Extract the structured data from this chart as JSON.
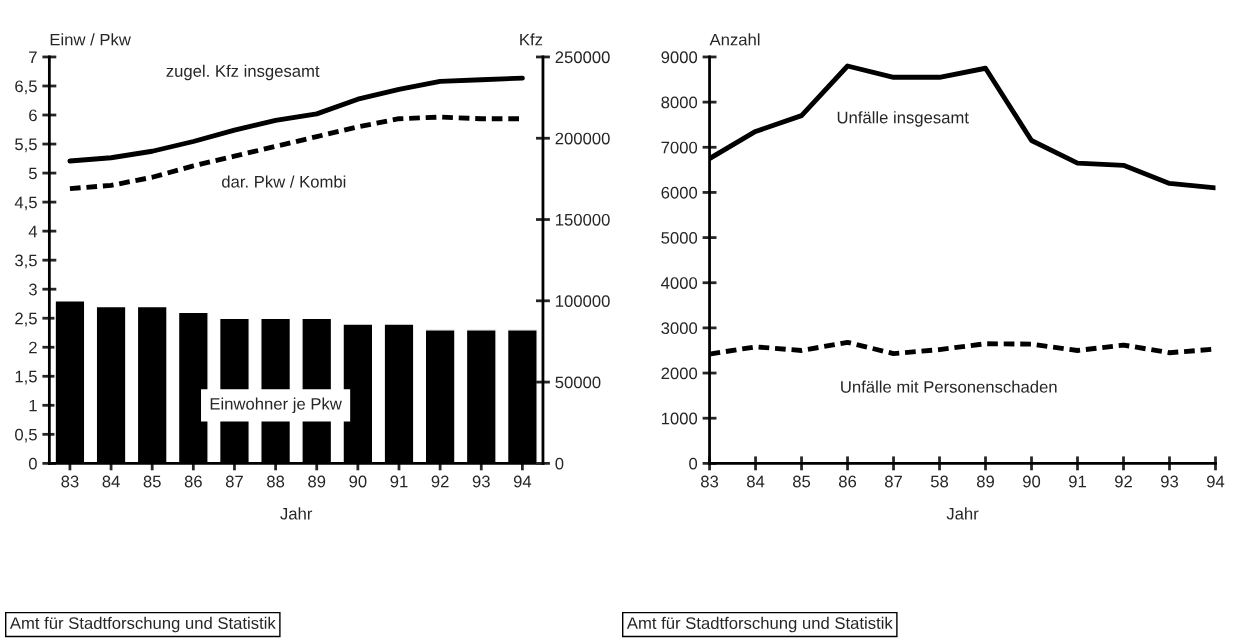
{
  "chart_data": [
    {
      "type": "bar",
      "xlabel": "Jahr",
      "ylabel": "Einw / Pkw",
      "y2label": "Kfz",
      "categories": [
        "83",
        "84",
        "85",
        "86",
        "87",
        "88",
        "89",
        "90",
        "91",
        "92",
        "93",
        "94"
      ],
      "series": [
        {
          "name": "Einwohner je Pkw",
          "type": "bar",
          "color": "#000000",
          "values": [
            2.8,
            2.7,
            2.7,
            2.6,
            2.5,
            2.5,
            2.5,
            2.4,
            2.4,
            2.3,
            2.3,
            2.3
          ]
        },
        {
          "name": "zugel. Kfz insgesamt",
          "type": "line",
          "axis": "y2",
          "color": "#000000",
          "line_style": "solid",
          "values": [
            186000,
            188000,
            192000,
            198000,
            205000,
            211000,
            215000,
            224000,
            230000,
            235000,
            236000,
            237000
          ]
        },
        {
          "name": "dar. Pkw / Kombi",
          "type": "line",
          "axis": "y2",
          "color": "#000000",
          "line_style": "dashed",
          "values": [
            169000,
            171000,
            176000,
            183000,
            189000,
            195000,
            201000,
            207000,
            212000,
            213000,
            212000,
            212000
          ]
        }
      ],
      "ylim": [
        0,
        7
      ],
      "yticks": [
        0,
        {
          "value": 0.5,
          "label": "0,5"
        },
        1,
        {
          "value": 1.5,
          "label": "1,5"
        },
        2,
        {
          "value": 2.5,
          "label": "2,5"
        },
        3,
        {
          "value": 3.5,
          "label": "3,5"
        },
        4,
        {
          "value": 4.5,
          "label": "4,5"
        },
        5,
        {
          "value": 5.5,
          "label": "5,5"
        },
        6,
        {
          "value": 6.5,
          "label": "6,5"
        },
        7
      ],
      "y2lim": [
        0,
        250000
      ],
      "y2ticks": [
        0,
        50000,
        100000,
        150000,
        200000,
        250000
      ],
      "grid": false,
      "legend": false,
      "annotations": [
        "Amt für Stadtforschung und Statistik"
      ]
    },
    {
      "type": "line",
      "xlabel": "Jahr",
      "ylabel": "Anzahl",
      "categories": [
        "83",
        "84",
        "85",
        "86",
        "87",
        "58",
        "89",
        "90",
        "91",
        "92",
        "93",
        "94"
      ],
      "series": [
        {
          "name": "Unfälle insgesamt",
          "color": "#000000",
          "line_style": "solid",
          "values": [
            6750,
            7350,
            7700,
            8800,
            8550,
            8550,
            8750,
            7150,
            6650,
            6600,
            6200,
            6100
          ]
        },
        {
          "name": "Unfälle mit Personenschaden",
          "color": "#000000",
          "line_style": "dashed",
          "values": [
            2420,
            2580,
            2500,
            2680,
            2430,
            2520,
            2650,
            2640,
            2500,
            2620,
            2450,
            2530
          ]
        }
      ],
      "ylim": [
        0,
        9000
      ],
      "yticks": [
        0,
        1000,
        2000,
        3000,
        4000,
        5000,
        6000,
        7000,
        8000,
        9000
      ],
      "grid": false,
      "legend": false,
      "annotations": [
        "Amt für Stadtforschung und Statistik"
      ]
    }
  ]
}
